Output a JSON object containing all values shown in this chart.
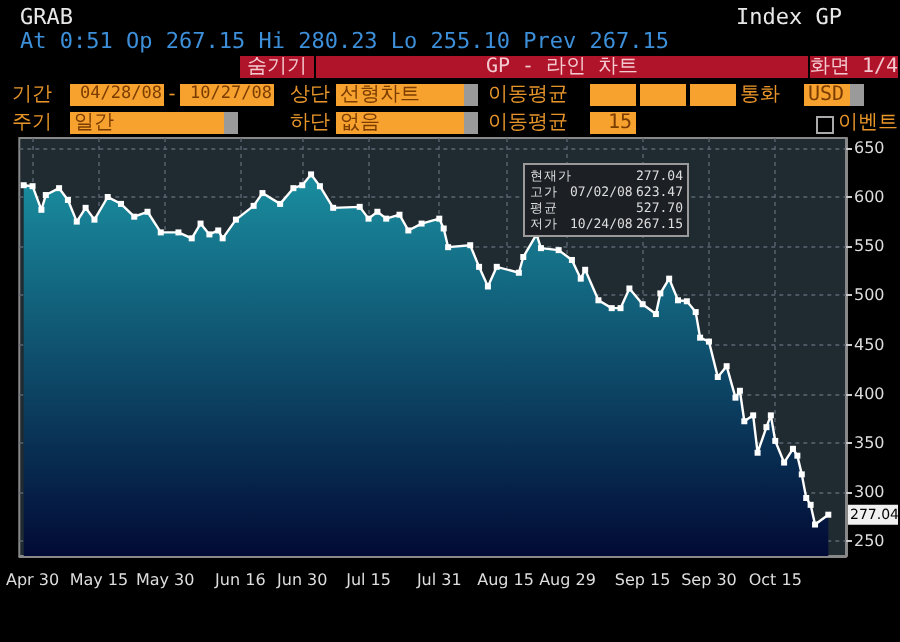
{
  "chart_data": {
    "type": "area",
    "color": "#ffffff",
    "marker": "square",
    "grid": true,
    "x": [
      "--04-28",
      "--04-30",
      "--05-02",
      "--05-03",
      "--05-06",
      "--05-08",
      "--05-10",
      "--05-12",
      "--05-14",
      "--05-17",
      "--05-20",
      "--05-23",
      "--05-26",
      "--05-29",
      "--06-02",
      "--06-05",
      "--06-07",
      "--06-09",
      "--06-11",
      "--06-12",
      "--06-15",
      "--06-19",
      "--06-21",
      "--06-25",
      "--06-28",
      "--06-30",
      "--07-02",
      "--07-04",
      "--07-07",
      "--07-13",
      "--07-15",
      "--07-17",
      "--07-19",
      "--07-22",
      "--07-24",
      "--07-27",
      "--07-31",
      "--08-01",
      "--08-02",
      "--08-07",
      "--08-09",
      "--08-11",
      "--08-13",
      "--08-18",
      "--08-19",
      "--08-22",
      "--08-23",
      "--08-27",
      "--08-30",
      "--09-01",
      "--09-02",
      "--09-05",
      "--09-08",
      "--09-10",
      "--09-12",
      "--09-15",
      "--09-18",
      "--09-19",
      "--09-21",
      "--09-23",
      "--09-25",
      "--09-27",
      "--09-28",
      "--09-30",
      "--10-02",
      "--10-04",
      "--10-06",
      "--10-07",
      "--10-08",
      "--10-10",
      "--10-11",
      "--10-13",
      "--10-14",
      "--10-15",
      "--10-17",
      "--10-19",
      "--10-20",
      "--10-21",
      "--10-22",
      "--10-23",
      "--10-24",
      "--10-27"
    ],
    "values": [
      612,
      611,
      587,
      602,
      609,
      597,
      575,
      589,
      577,
      600,
      593,
      580,
      585,
      564,
      564,
      558,
      573,
      562,
      566,
      558,
      577,
      591,
      604,
      593,
      609,
      612,
      623,
      611,
      589,
      590,
      578,
      585,
      578,
      582,
      566,
      573,
      578,
      568,
      549,
      551,
      529,
      509,
      529,
      523,
      539,
      562,
      548,
      546,
      536,
      517,
      526,
      495,
      487,
      487,
      507,
      491,
      481,
      502,
      517,
      495,
      494,
      483,
      457,
      453,
      417,
      428,
      396,
      403,
      372,
      378,
      340,
      366,
      378,
      352,
      330,
      344,
      337,
      318,
      294,
      287,
      267,
      277
    ],
    "xlim": [
      "--04-27",
      "--10-31"
    ],
    "xticks": [
      {
        "value": "--04-30",
        "label": "Apr 30"
      },
      {
        "value": "--05-15",
        "label": "May 15"
      },
      {
        "value": "--05-30",
        "label": "May 30"
      },
      {
        "value": "--06-16",
        "label": "Jun 16"
      },
      {
        "value": "--06-30",
        "label": "Jun 30"
      },
      {
        "value": "--07-15",
        "label": "Jul 15"
      },
      {
        "value": "--07-31",
        "label": "Jul 31"
      },
      {
        "value": "--08-15",
        "label": "Aug 15"
      },
      {
        "value": "--08-29",
        "label": "Aug 29"
      },
      {
        "value": "--09-15",
        "label": "Sep 15"
      },
      {
        "value": "--09-30",
        "label": "Sep 30"
      },
      {
        "value": "--10-15",
        "label": "Oct 15"
      }
    ],
    "ylim": [
      235,
      660
    ],
    "yticks": [
      250,
      300,
      350,
      400,
      450,
      500,
      550,
      600,
      650
    ],
    "annotations": [
      "GRAB",
      "At 0:51 Op 267.15 Hi 280.23 Lo 255.10 Prev 267.15",
      "Index GP",
      "숨기기",
      "GP - 라인 차트",
      "화면 1/4",
      "기간",
      "04/28/08",
      "-",
      "10/27/08",
      "상단",
      "선형차트",
      "이동평균",
      "통화",
      "USD",
      "주기",
      "일간",
      "하단",
      "없음",
      "이동평균",
      "15",
      "이벤트",
      "현재가",
      "277.04",
      "고가",
      "07/02/08",
      "623.47",
      "평균",
      "527.70",
      "저가",
      "10/24/08",
      "267.15",
      {
        "text": "277.04",
        "y": 277.04
      }
    ]
  }
}
